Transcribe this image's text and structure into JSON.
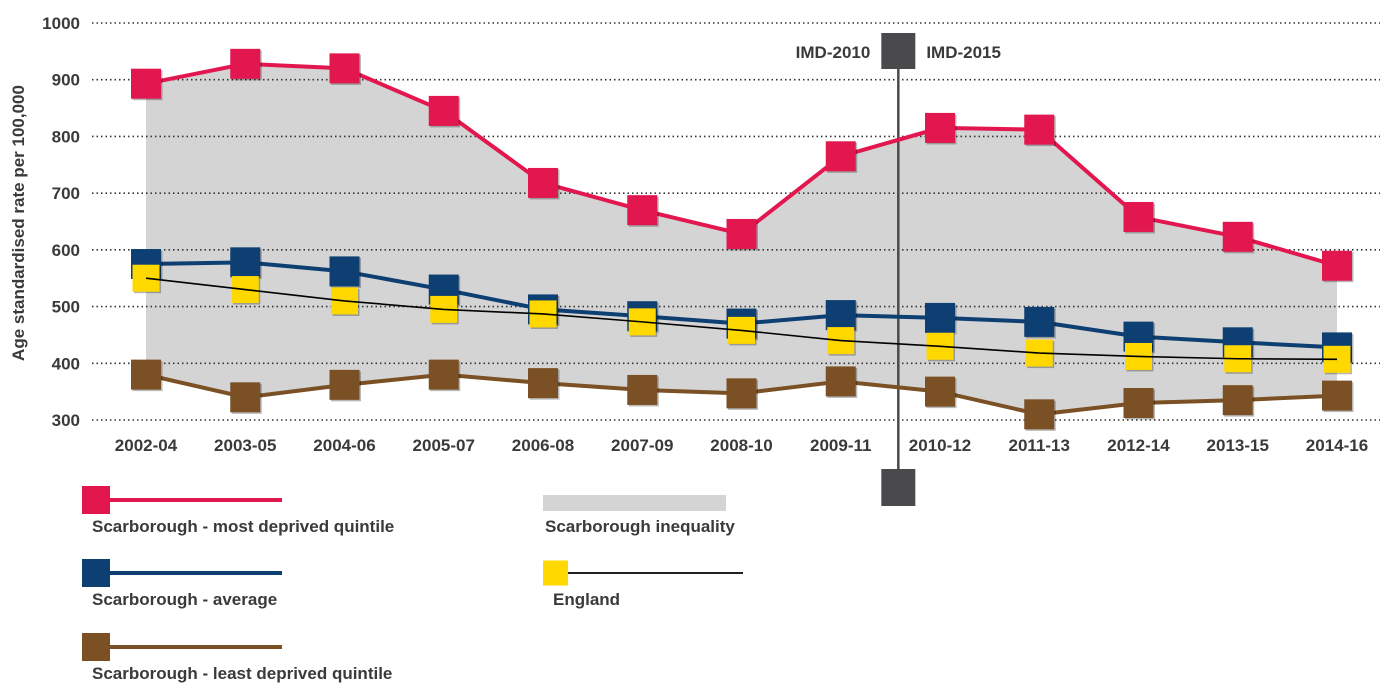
{
  "chart_data": {
    "type": "line",
    "ylabel": "Age standardised rate per 100,000",
    "ylim": [
      300,
      1000
    ],
    "yticks": [
      300,
      400,
      500,
      600,
      700,
      800,
      900,
      1000
    ],
    "grid": "horizontal-dotted",
    "categories": [
      "2002-04",
      "2003-05",
      "2004-06",
      "2005-07",
      "2006-08",
      "2007-09",
      "2008-10",
      "2009-11",
      "2010-12",
      "2011-13",
      "2012-14",
      "2013-15",
      "2014-16"
    ],
    "series": [
      {
        "name": "Scarborough - most deprived quintile",
        "color": "#e3174f",
        "marker": "square",
        "values": [
          893,
          928,
          920,
          845,
          718,
          670,
          628,
          765,
          815,
          812,
          658,
          623,
          572
        ]
      },
      {
        "name": "Scarborough - average",
        "color": "#0e3f72",
        "marker": "square",
        "values": [
          575,
          578,
          562,
          530,
          495,
          483,
          470,
          485,
          480,
          473,
          447,
          437,
          428
        ]
      },
      {
        "name": "England",
        "color": "#000000",
        "marker_color": "#ffd800",
        "marker": "square",
        "values": [
          550,
          530,
          510,
          495,
          487,
          473,
          458,
          440,
          430,
          418,
          412,
          408,
          407
        ]
      },
      {
        "name": "Scarborough - least deprived quintile",
        "color": "#7a5024",
        "marker": "square",
        "values": [
          380,
          340,
          362,
          380,
          365,
          353,
          347,
          368,
          350,
          310,
          330,
          335,
          343
        ]
      }
    ],
    "inequality_band": {
      "name": "Scarborough inequality",
      "color": "#d4d4d4",
      "between": [
        "Scarborough - most deprived quintile",
        "Scarborough - least deprived quintile"
      ]
    },
    "annotations": {
      "divider_left_label": "IMD-2010",
      "divider_right_label": "IMD-2015",
      "divider_color": "#4a4a4c"
    },
    "legend": "bottom"
  }
}
